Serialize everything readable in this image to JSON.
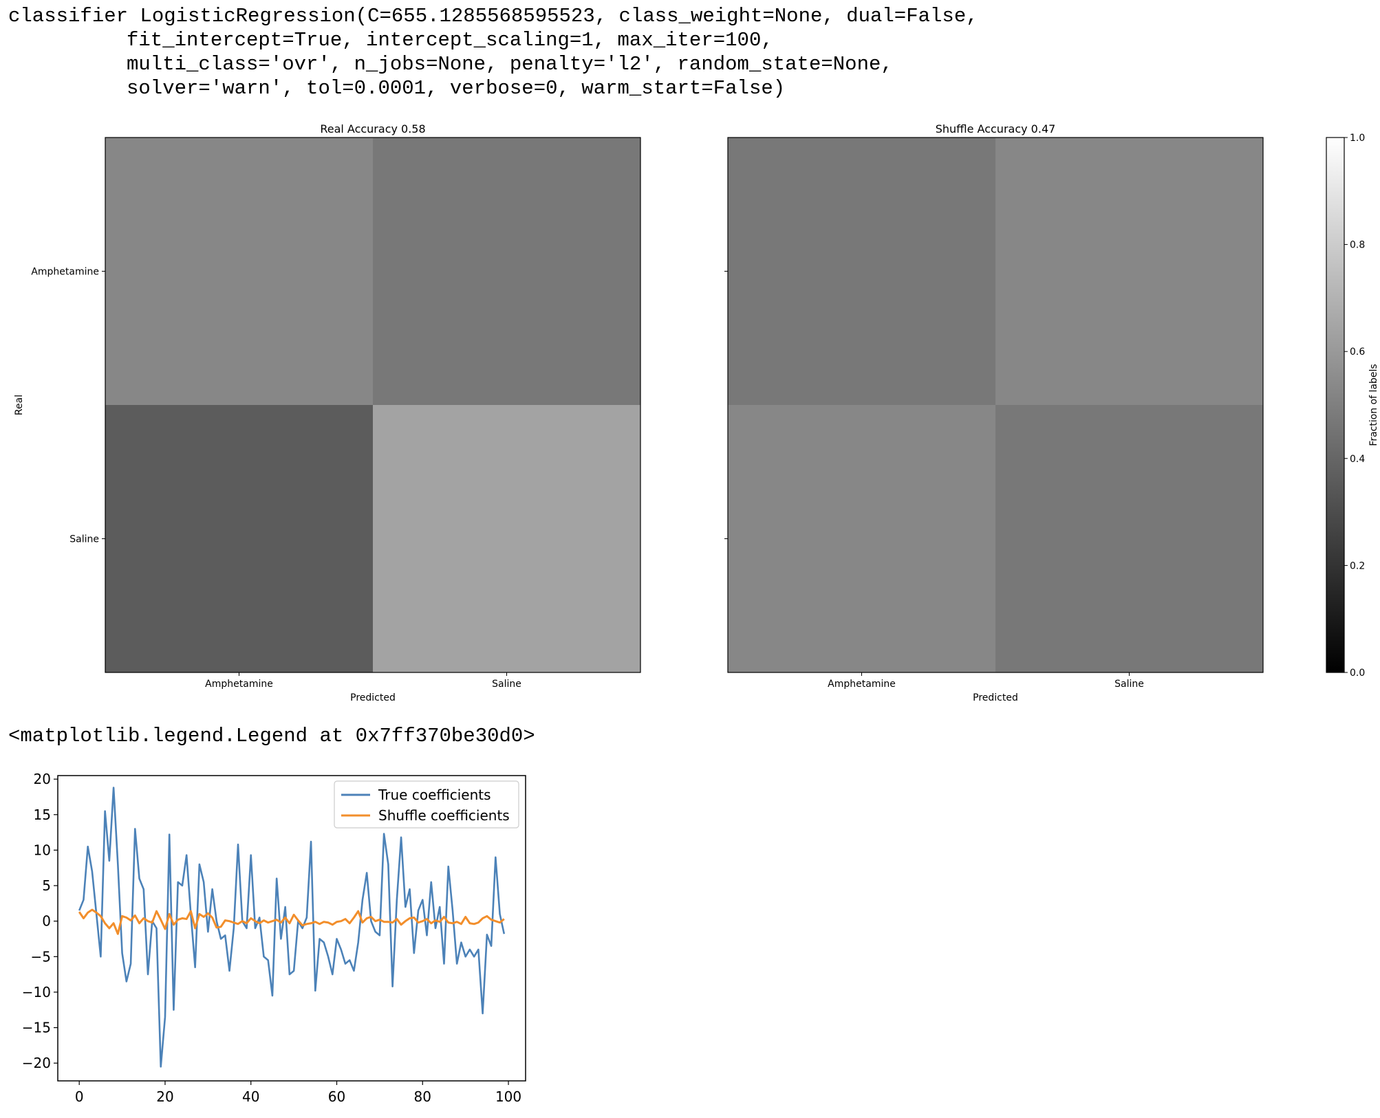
{
  "cell_output": {
    "code_lines": [
      "classifier LogisticRegression(C=655.1285568595523, class_weight=None, dual=False,",
      "fit_intercept=True, intercept_scaling=1, max_iter=100,",
      "multi_class='ovr', n_jobs=None, penalty='l2', random_state=None,",
      "solver='warn', tol=0.0001, verbose=0, warm_start=False)"
    ],
    "legend_repr": "<matplotlib.legend.Legend at 0x7ff370be30d0>"
  },
  "chart_data": [
    {
      "type": "heatmap",
      "title": "Real Accuracy 0.58",
      "xlabel": "Predicted",
      "ylabel": "Real",
      "x_categories": [
        "Amphetamine",
        "Saline"
      ],
      "y_categories": [
        "Amphetamine",
        "Saline"
      ],
      "values": [
        [
          0.53,
          0.47
        ],
        [
          0.36,
          0.64
        ]
      ],
      "colormap": "gray",
      "vmin": 0.0,
      "vmax": 1.0
    },
    {
      "type": "heatmap",
      "title": "Shuffle Accuracy 0.47",
      "xlabel": "Predicted",
      "ylabel": "",
      "x_categories": [
        "Amphetamine",
        "Saline"
      ],
      "y_categories": [
        "",
        ""
      ],
      "values": [
        [
          0.47,
          0.53
        ],
        [
          0.53,
          0.47
        ]
      ],
      "colormap": "gray",
      "vmin": 0.0,
      "vmax": 1.0
    },
    {
      "type": "colorbar",
      "label": "Fraction of labels",
      "ticks": [
        "0.0",
        "0.2",
        "0.4",
        "0.6",
        "0.8",
        "1.0"
      ],
      "range": [
        0.0,
        1.0
      ]
    },
    {
      "type": "line",
      "xlim": [
        -5,
        104
      ],
      "ylim": [
        -22.5,
        20.5
      ],
      "x_ticks": [
        0,
        20,
        40,
        60,
        80,
        100
      ],
      "y_ticks": [
        20,
        15,
        10,
        5,
        0,
        -5,
        -10,
        -15,
        -20
      ],
      "legend_position": "upper right",
      "series": [
        {
          "name": "True coefficients",
          "color": "#4c82b8",
          "y": [
            1.5,
            3,
            10.5,
            7,
            1,
            -5,
            15.5,
            8.5,
            18.8,
            8,
            -4.5,
            -8.5,
            -6,
            13,
            6,
            4.5,
            -7.5,
            0,
            -1,
            -20.5,
            -13.5,
            12.2,
            -12.5,
            5.5,
            5,
            9.3,
            1,
            -6.5,
            8,
            5.5,
            -1.5,
            4.5,
            0,
            -2.5,
            -2,
            -7,
            -1,
            10.8,
            0,
            -1,
            9.3,
            -1,
            0.5,
            -5,
            -5.5,
            -10.5,
            6,
            -2.5,
            2,
            -7.5,
            -7,
            0,
            -1,
            0.5,
            11.2,
            -9.8,
            -2.5,
            -3,
            -5,
            -7.5,
            -2.5,
            -4,
            -6,
            -5.5,
            -7,
            -3,
            3,
            6.8,
            0,
            -1.5,
            -2,
            12.3,
            8,
            -9.2,
            3,
            11.8,
            2,
            4.5,
            -4.5,
            1.5,
            3,
            -2,
            5.5,
            -1,
            2,
            -6,
            7.7,
            1.5,
            -6,
            -3,
            -5,
            -4,
            -5,
            -4,
            -13,
            -1.9,
            -3.5,
            9,
            1,
            -1.8
          ]
        },
        {
          "name": "Shuffle coefficients",
          "color": "#f28e2b",
          "y": [
            1.3,
            0.4,
            1.2,
            1.6,
            1.2,
            0.7,
            -0.3,
            -1,
            -0.3,
            -1.8,
            0.7,
            0.5,
            0.1,
            0.8,
            -0.3,
            0.4,
            0,
            -0.2,
            1.4,
            0.2,
            -1.1,
            1,
            -0.5,
            0.2,
            0.4,
            0.3,
            1.4,
            -1,
            1,
            0.6,
            1.1,
            0.5,
            -0.9,
            -0.8,
            0.1,
            0,
            -0.2,
            -0.4,
            0,
            -0.3,
            0.4,
            0,
            -0.3,
            0.1,
            -0.2,
            0,
            0.2,
            -0.2,
            0.5,
            -0.3,
            0.9,
            0.1,
            -0.6,
            -0.4,
            -0.3,
            -0.1,
            -0.4,
            -0.1,
            -0.2,
            -0.5,
            -0.1,
            0,
            0.3,
            -0.3,
            0.5,
            1.4,
            -0.2,
            0.4,
            0.6,
            0,
            0.2,
            -0.1,
            -0.1,
            -0.2,
            0.3,
            -0.5,
            0,
            0.4,
            0.5,
            -0.2,
            0,
            0.3,
            -0.3,
            0.1,
            -0.1,
            0.6,
            -0.2,
            -0.3,
            -0.1,
            -0.4,
            0.6,
            -0.3,
            -0.4,
            -0.2,
            0.4,
            0.7,
            0.2,
            0,
            -0.2,
            0.3
          ]
        }
      ]
    }
  ]
}
